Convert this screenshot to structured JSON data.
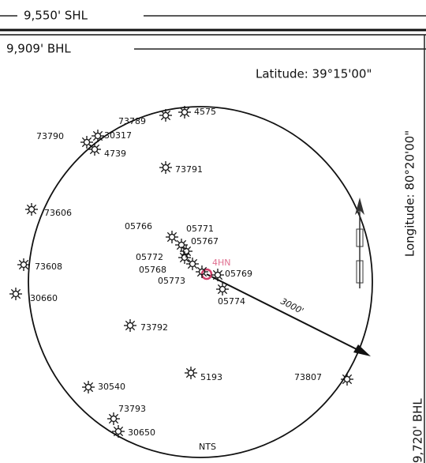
{
  "header": {
    "shl": "9,550' SHL",
    "bhl": "9,909' BHL",
    "latitude": "Latitude: 39°15'00\"",
    "longitude": "Longitude: 80°20'00\"",
    "side_bhl": "9,720' BHL"
  },
  "wells": [
    "4575",
    "73789",
    "30317",
    "73790",
    "4739",
    "73791",
    "73606",
    "05766",
    "05771",
    "05767",
    "05772",
    "05768",
    "05769",
    "05773",
    "05774",
    "73608",
    "30660",
    "73792",
    "5193",
    "30540",
    "73793",
    "30650",
    "73807"
  ],
  "proposed_well": "4HN",
  "distance": "3000'",
  "scale": "NTS"
}
